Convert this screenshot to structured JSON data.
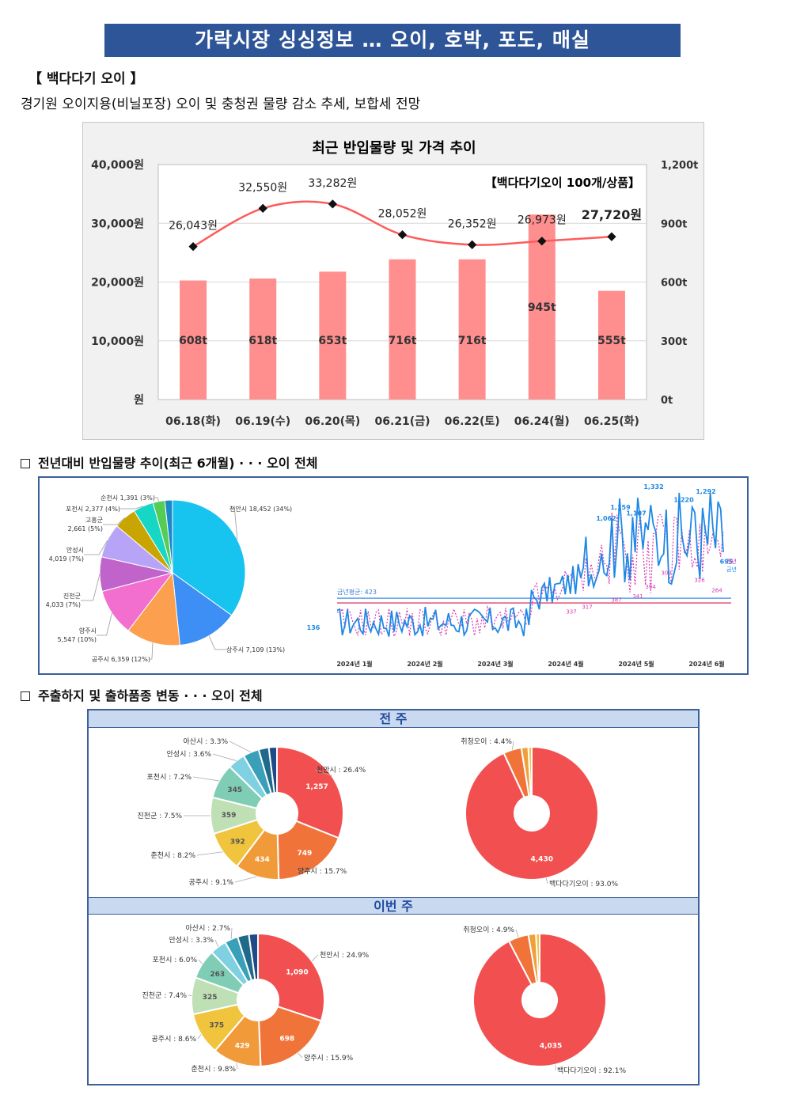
{
  "page": {
    "title": "가락시장 싱싱정보 … 오이, 호박, 포도, 매실",
    "section_label": "【 백다다기 오이 】",
    "section_desc": "경기원 오이지용(비닐포장) 오이 및 충청권 물량 감소 추세, 보합세 전망",
    "heading_2": "전년대비 반입물량 추이(최근 6개월) · · · 오이 전체",
    "heading_3": "주출하지 및 출하품종 변동 · · · 오이 전체"
  },
  "chart_data": [
    {
      "type": "bar+line",
      "title": "최근 반입물량 및 가격 추이",
      "annotation": "【백다다기오이 100개/상품】",
      "categories": [
        "06.18(화)",
        "06.19(수)",
        "06.20(목)",
        "06.21(금)",
        "06.22(토)",
        "06.24(월)",
        "06.25(화)"
      ],
      "volume_t": [
        608,
        618,
        653,
        716,
        716,
        945,
        555
      ],
      "volume_labels": [
        "608t",
        "618t",
        "653t",
        "716t",
        "716t",
        "945t",
        "555t"
      ],
      "price_won": [
        26043,
        32550,
        33282,
        28052,
        26352,
        26973,
        27720
      ],
      "price_labels": [
        "26,043원",
        "32,550원",
        "33,282원",
        "28,052원",
        "26,352원",
        "26,973원",
        "27,720원"
      ],
      "y_left_ticks": [
        "40,000원",
        "30,000원",
        "20,000원",
        "10,000원",
        "원"
      ],
      "y_left_range": [
        0,
        40000
      ],
      "y_right_ticks": [
        "1,200t",
        "900t",
        "600t",
        "300t",
        "0t"
      ],
      "y_right_range": [
        0,
        1200
      ],
      "bar_color": "#ff8f8f",
      "line_color": "#ff5b5b"
    },
    {
      "type": "pie",
      "series": [
        {
          "label": "천안시 18,452 (34%)",
          "value": 18452,
          "color": "#17c3ef"
        },
        {
          "label": "상주시 7,109 (13%)",
          "value": 7109,
          "color": "#3d8ef5"
        },
        {
          "label": "공주시 6,359 (12%)",
          "value": 6359,
          "color": "#fca050"
        },
        {
          "label": "양주시 5,547 (10%)",
          "value": 5547,
          "color": "#f26fcf"
        },
        {
          "label": "진천군 4,033 (7%)",
          "value": 4033,
          "color": "#c064cc"
        },
        {
          "label": "안성시 4,019 (7%)",
          "value": 4019,
          "color": "#b8a4f7"
        },
        {
          "label": "고흥군 2,661 (5%)",
          "value": 2661,
          "color": "#c8a500"
        },
        {
          "label": "포천시 2,377 (4%)",
          "value": 2377,
          "color": "#16d6c6"
        },
        {
          "label": "순천시 1,391 (3%)",
          "value": 1391,
          "color": "#55cc55"
        },
        {
          "label": "",
          "value": 900,
          "color": "#1b88c8"
        }
      ]
    },
    {
      "type": "line",
      "x_labels": [
        "2024년 1월",
        "2024년 2월",
        "2024년 3월",
        "2024년 4월",
        "2024년 5월",
        "2024년 6월"
      ],
      "avg_label": "금년평균: 423",
      "legend": [
        "전년",
        "금년"
      ],
      "peak_labels_this_year": [
        "136",
        "1,062",
        "1,159",
        "1,107",
        "1,332",
        "1,220",
        "1,292",
        "695"
      ],
      "peak_labels_last_year": [
        "337",
        "317",
        "387",
        "341",
        "394",
        "303",
        "326",
        "264"
      ],
      "this_year_color": "#1e88e5",
      "last_year_color": "#d63ab0"
    },
    {
      "type": "donut",
      "period": "전 주",
      "series": [
        {
          "label": "천안시 : 26.4%",
          "value": 1257,
          "color": "#f25050"
        },
        {
          "label": "양주시 : 15.7%",
          "value": 749,
          "color": "#f0743a"
        },
        {
          "label": "공주시 : 9.1%",
          "value": 434,
          "color": "#f09a3a"
        },
        {
          "label": "춘천시 : 8.2%",
          "value": 392,
          "color": "#f0c43c"
        },
        {
          "label": "진천군 : 7.5%",
          "value": 359,
          "color": "#bfe0b5"
        },
        {
          "label": "포천시 : 7.2%",
          "value": 345,
          "color": "#7fcdb5"
        },
        {
          "label": "안성시 : 3.6%",
          "value": 172,
          "color": "#7fd0e0"
        },
        {
          "label": "아산시 : 3.3%",
          "value": 158,
          "color": "#3a9fb8"
        },
        {
          "label": "",
          "value": 100,
          "color": "#1f6a8a"
        },
        {
          "label": "",
          "value": 80,
          "color": "#1e4a8a"
        }
      ]
    },
    {
      "type": "donut",
      "period": "전 주",
      "series": [
        {
          "label": "백다다기오이 : 93.0%",
          "value": 4430,
          "color": "#f25050"
        },
        {
          "label": "취청오이 : 4.4%",
          "value": 210,
          "color": "#f0743a"
        },
        {
          "label": "",
          "value": 80,
          "color": "#f0a03a"
        },
        {
          "label": "",
          "value": 40,
          "color": "#f0c43c"
        }
      ]
    },
    {
      "type": "donut",
      "period": "이번 주",
      "series": [
        {
          "label": "천안시 : 24.9%",
          "value": 1090,
          "color": "#f25050"
        },
        {
          "label": "양주시 : 15.9%",
          "value": 698,
          "color": "#f0743a"
        },
        {
          "label": "춘천시 : 9.8%",
          "value": 429,
          "color": "#f09a3a"
        },
        {
          "label": "공주시 : 8.6%",
          "value": 375,
          "color": "#f0c43c"
        },
        {
          "label": "진천군 : 7.4%",
          "value": 325,
          "color": "#bfe0b5"
        },
        {
          "label": "포천시 : 6.0%",
          "value": 263,
          "color": "#7fcdb5"
        },
        {
          "label": "안성시 : 3.3%",
          "value": 145,
          "color": "#7fd0e0"
        },
        {
          "label": "아산시 : 2.7%",
          "value": 118,
          "color": "#3a9fb8"
        },
        {
          "label": "",
          "value": 100,
          "color": "#1f6a8a"
        },
        {
          "label": "",
          "value": 80,
          "color": "#1e4a8a"
        }
      ]
    },
    {
      "type": "donut",
      "period": "이번 주",
      "series": [
        {
          "label": "백다다기오이 : 92.1%",
          "value": 4035,
          "color": "#f25050"
        },
        {
          "label": "취청오이 : 4.9%",
          "value": 215,
          "color": "#f0743a"
        },
        {
          "label": "",
          "value": 80,
          "color": "#f0a03a"
        },
        {
          "label": "",
          "value": 40,
          "color": "#f0c43c"
        }
      ]
    }
  ],
  "week_headers": [
    "전 주",
    "이번 주"
  ],
  "donut_inner_labels": {
    "prev_region": [
      "1,257",
      "749",
      "434",
      "392",
      "359",
      "345"
    ],
    "prev_variety": [
      "4,430"
    ],
    "curr_region": [
      "1,090",
      "698",
      "429",
      "375",
      "325",
      "263"
    ],
    "curr_variety": [
      "4,035"
    ]
  }
}
